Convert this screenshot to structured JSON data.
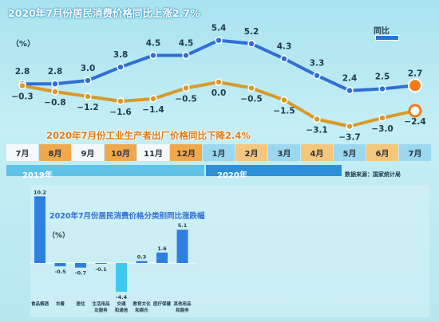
{
  "colors": {
    "cpi_line": "#2f6fd6",
    "ppi_line": "#d99a2b",
    "ppi_last_marker": "#f07d1a",
    "month_2019": "#f0a84c",
    "month_2020_alt": "#f5c77c",
    "bar_fill": "#2f7fe0",
    "bar_negative": "#3ec9ee"
  },
  "texts": {
    "cpi_title": "2020年7月份居民消费价格同比上涨2.7%",
    "ppi_title": "2020年7月份工业生产者出厂价格同比下降2.4%",
    "top_unit": "（%）",
    "legend_label": "同比",
    "year_2019": "2019年",
    "year_2020": "2020年",
    "source": "数据来源：国家统计局",
    "bottom_title": "2020年7月份居民消费价格分类别同比涨跌幅",
    "bottom_unit": "（%）"
  },
  "chart_data": [
    {
      "type": "line",
      "title": "2020年7月份居民消费价格同比上涨2.7%",
      "categories": [
        "7月",
        "8月",
        "9月",
        "10月",
        "11月",
        "12月",
        "1月",
        "2月",
        "3月",
        "4月",
        "5月",
        "6月",
        "7月"
      ],
      "series": [
        {
          "name": "同比",
          "values": [
            2.8,
            2.8,
            3.0,
            3.8,
            4.5,
            4.5,
            5.4,
            5.2,
            4.3,
            3.3,
            2.4,
            2.5,
            2.7
          ]
        }
      ],
      "ylabel": "（%）",
      "year_groups": [
        {
          "label": "2019年",
          "months": [
            "7月",
            "8月",
            "9月",
            "10月",
            "11月",
            "12月"
          ]
        },
        {
          "label": "2020年",
          "months": [
            "1月",
            "2月",
            "3月",
            "4月",
            "5月",
            "6月",
            "7月"
          ]
        }
      ]
    },
    {
      "type": "line",
      "title": "2020年7月份工业生产者出厂价格同比下降2.4%",
      "categories": [
        "7月",
        "8月",
        "9月",
        "10月",
        "11月",
        "12月",
        "1月",
        "2月",
        "3月",
        "4月",
        "5月",
        "6月",
        "7月"
      ],
      "series": [
        {
          "values": [
            -0.3,
            -0.8,
            -1.2,
            -1.6,
            -1.4,
            -0.5,
            0.0,
            -0.5,
            -1.5,
            -3.1,
            -3.7,
            -3.0,
            -2.4
          ]
        }
      ],
      "value_labels": [
        "−0.3",
        "−0.8",
        "−1.2",
        "−1.6",
        "−1.4",
        "−0.5",
        "0.0",
        "−0.5",
        "−1.5",
        "−3.1",
        "−3.7",
        "−3.0",
        "−2.4"
      ]
    },
    {
      "type": "bar",
      "title": "2020年7月份居民消费价格分类别同比涨跌幅",
      "ylabel": "（%）",
      "categories": [
        [
          "食品烟酒"
        ],
        [
          "衣着"
        ],
        [
          "居住"
        ],
        [
          "生活用品",
          "及服务"
        ],
        [
          "交通",
          "和通信"
        ],
        [
          "教育文化",
          "和娱乐"
        ],
        [
          "医疗保健"
        ],
        [
          "其他用品",
          "和服务"
        ]
      ],
      "values": [
        10.2,
        -0.5,
        -0.7,
        -0.1,
        -4.4,
        0.3,
        1.6,
        5.1
      ]
    }
  ]
}
